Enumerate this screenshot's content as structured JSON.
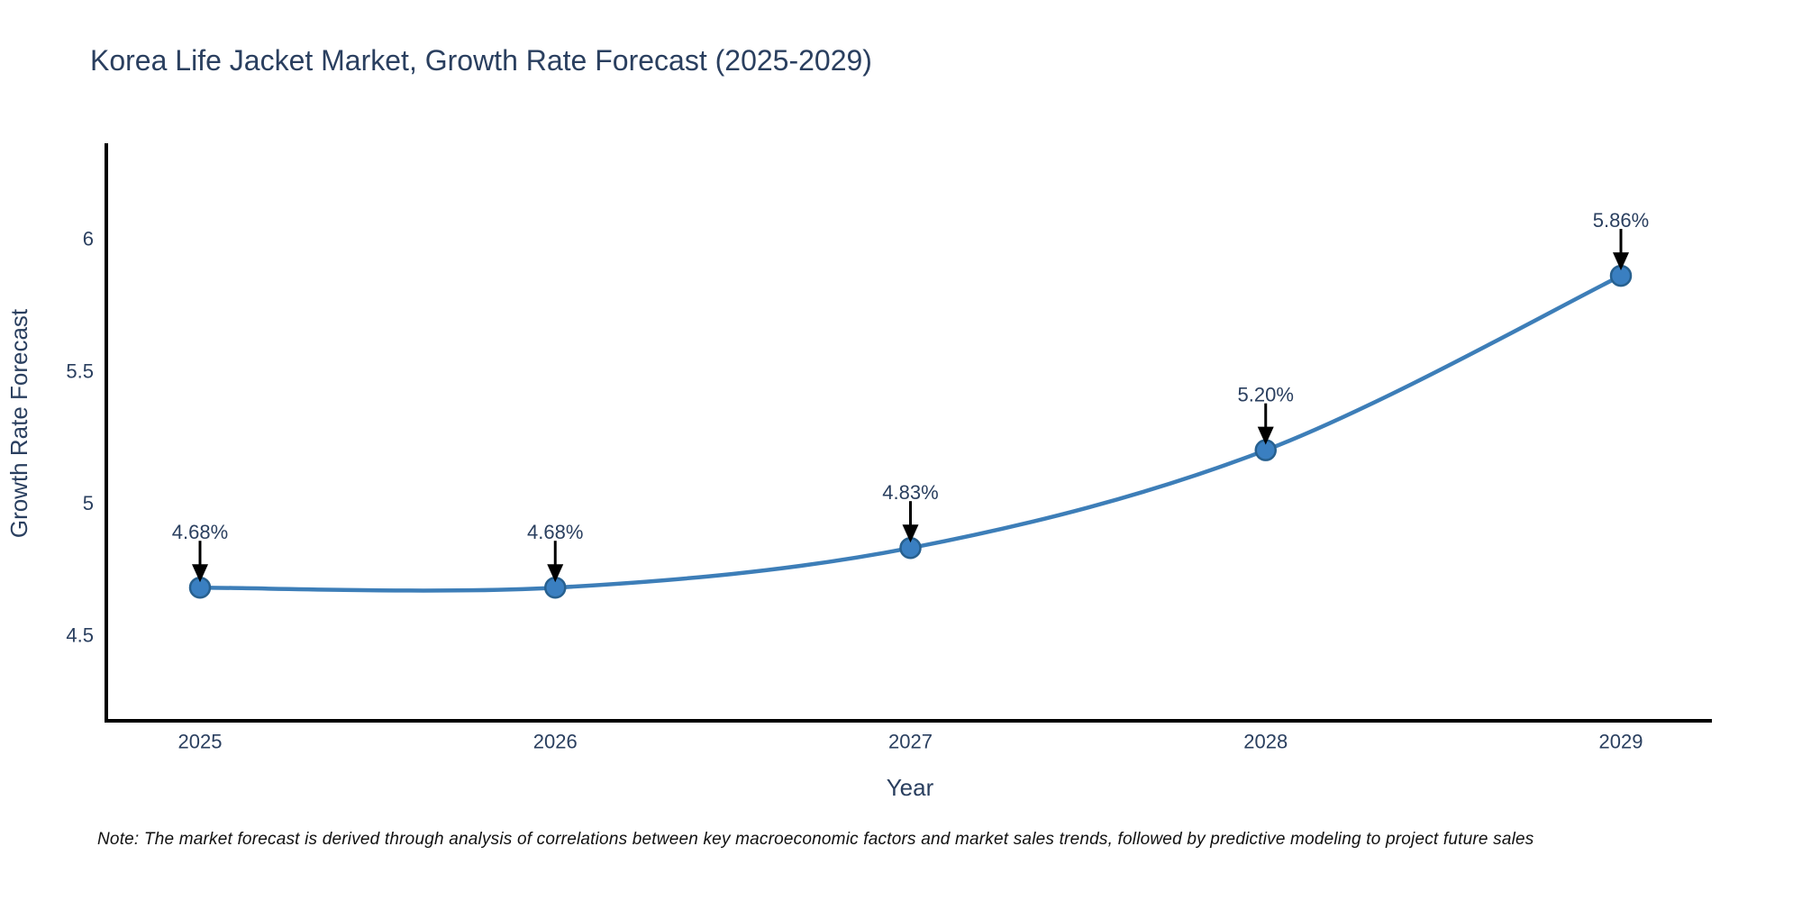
{
  "chart_data": {
    "type": "line",
    "title": "Korea Life Jacket Market, Growth Rate Forecast (2025-2029)",
    "xlabel": "Year",
    "ylabel": "Growth Rate Forecast",
    "categories": [
      "2025",
      "2026",
      "2027",
      "2028",
      "2029"
    ],
    "series": [
      {
        "name": "Growth Rate Forecast",
        "values": [
          4.68,
          4.68,
          4.83,
          5.2,
          5.86
        ]
      }
    ],
    "point_labels": [
      "4.68%",
      "4.68%",
      "4.83%",
      "5.20%",
      "5.86%"
    ],
    "yticks": [
      4.5,
      5,
      5.5,
      6
    ],
    "ytick_labels": [
      "4.5",
      "5",
      "5.5",
      "6"
    ],
    "ylim": [
      4.18,
      6.36
    ],
    "grid": false,
    "legend": "none",
    "line_shape": "spline",
    "annotations_have_arrows": true
  },
  "note": {
    "text": "Note: The market forecast is derived through analysis of correlations between key macroeconomic factors and market sales trends, followed by predictive modeling to project future sales"
  },
  "colors": {
    "line": "#3d7eb8",
    "marker_fill": "#3a7fc1",
    "marker_edge": "#27608f",
    "text": "#2a3f5f",
    "axis": "#000000",
    "arrow": "#000000",
    "note_text": "#111111"
  }
}
